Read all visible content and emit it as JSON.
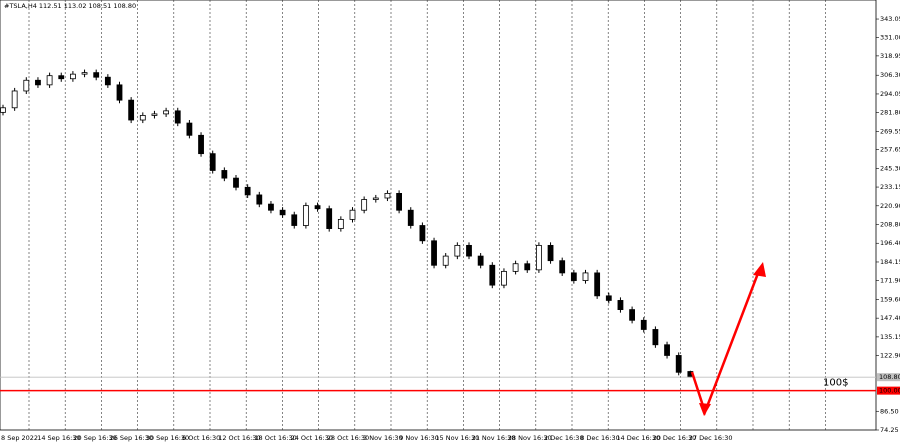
{
  "chart_data": {
    "type": "candlestick",
    "title": "#TSLA,H4  112.51 113.02 108.51 108.80",
    "categories": [
      "8 Sep 2022",
      "14 Sep 16:30",
      "20 Sep 16:30",
      "26 Sep 16:30",
      "30 Sep 16:30",
      "6 Oct 16:30",
      "12 Oct 16:30",
      "18 Oct 16:30",
      "24 Oct 16:30",
      "28 Oct 16:30",
      "3 Nov 16:30",
      "9 Nov 16:30",
      "15 Nov 16:30",
      "21 Nov 16:30",
      "28 Nov 16:30",
      "2 Dec 16:30",
      "8 Dec 16:30",
      "14 Dec 16:30",
      "20 Dec 16:30",
      "27 Dec 16:30"
    ],
    "open": [
      282,
      285,
      296,
      303,
      300,
      306,
      304,
      307,
      308,
      305,
      300,
      290,
      277,
      280,
      281,
      283,
      275,
      267,
      255,
      244,
      239,
      233,
      228,
      222,
      218,
      215,
      208,
      221,
      219,
      206,
      212,
      218,
      225,
      226,
      229,
      218,
      208,
      198,
      182,
      188,
      195,
      188,
      182,
      169,
      178,
      183,
      179,
      195,
      185,
      177,
      172,
      177,
      162,
      159,
      153,
      146,
      140,
      130,
      123,
      112.51
    ],
    "high": [
      287,
      298,
      305,
      305,
      308,
      308,
      309,
      310,
      310,
      307,
      302,
      292,
      282,
      283,
      285,
      285,
      277,
      269,
      257,
      246,
      241,
      235,
      230,
      224,
      220,
      217,
      223,
      223,
      221,
      214,
      220,
      227,
      228,
      231,
      231,
      220,
      210,
      200,
      190,
      197,
      197,
      190,
      184,
      180,
      185,
      185,
      197,
      197,
      187,
      179,
      179,
      179,
      164,
      161,
      155,
      148,
      142,
      132,
      125,
      113.02
    ],
    "low": [
      280,
      283,
      294,
      298,
      298,
      302,
      302,
      305,
      303,
      298,
      288,
      275,
      275,
      278,
      279,
      273,
      265,
      253,
      242,
      237,
      231,
      226,
      220,
      216,
      213,
      206,
      206,
      217,
      204,
      204,
      210,
      216,
      223,
      224,
      216,
      206,
      196,
      180,
      180,
      186,
      186,
      180,
      167,
      167,
      176,
      177,
      177,
      183,
      175,
      170,
      170,
      160,
      157,
      151,
      144,
      138,
      128,
      121,
      110,
      108.51
    ],
    "close": [
      285,
      296,
      303,
      300,
      306,
      304,
      307,
      308,
      305,
      300,
      290,
      277,
      280,
      281,
      283,
      275,
      267,
      255,
      244,
      239,
      233,
      228,
      222,
      218,
      215,
      208,
      221,
      219,
      206,
      212,
      218,
      225,
      226,
      229,
      218,
      208,
      198,
      182,
      188,
      195,
      188,
      182,
      169,
      178,
      183,
      179,
      195,
      185,
      177,
      172,
      177,
      162,
      159,
      153,
      146,
      140,
      130,
      123,
      112,
      108.8
    ],
    "ylim": [
      74.25,
      355.5
    ],
    "yticks": [
      {
        "value": 343.05,
        "label": "343.05"
      },
      {
        "value": 331,
        "label": "331.00"
      },
      {
        "value": 318.95,
        "label": "318.95"
      },
      {
        "value": 306.3,
        "label": "306.30"
      },
      {
        "value": 294.05,
        "label": "294.05"
      },
      {
        "value": 281.8,
        "label": "281.80"
      },
      {
        "value": 269.55,
        "label": "269.55"
      },
      {
        "value": 257.65,
        "label": "257.65"
      },
      {
        "value": 245.3,
        "label": "245.30"
      },
      {
        "value": 233.15,
        "label": "233.15"
      },
      {
        "value": 220.9,
        "label": "220.90"
      },
      {
        "value": 208.8,
        "label": "208.80"
      },
      {
        "value": 196.4,
        "label": "196.40"
      },
      {
        "value": 184.15,
        "label": "184.15"
      },
      {
        "value": 171.9,
        "label": "171.90"
      },
      {
        "value": 159.6,
        "label": "159.60"
      },
      {
        "value": 147.4,
        "label": "147.40"
      },
      {
        "value": 135.15,
        "label": "135.15"
      },
      {
        "value": 122.9,
        "label": "122.90"
      },
      {
        "value": 86.5,
        "label": "86.50"
      },
      {
        "value": 74.25,
        "label": "74.25"
      }
    ],
    "price_lines": [
      {
        "value": 108.8,
        "label": "108.80",
        "color": "#c0c0c0"
      },
      {
        "value": 100,
        "label": "100.00",
        "color": "#ff0000"
      }
    ],
    "annotation": "100$",
    "grid": true
  }
}
